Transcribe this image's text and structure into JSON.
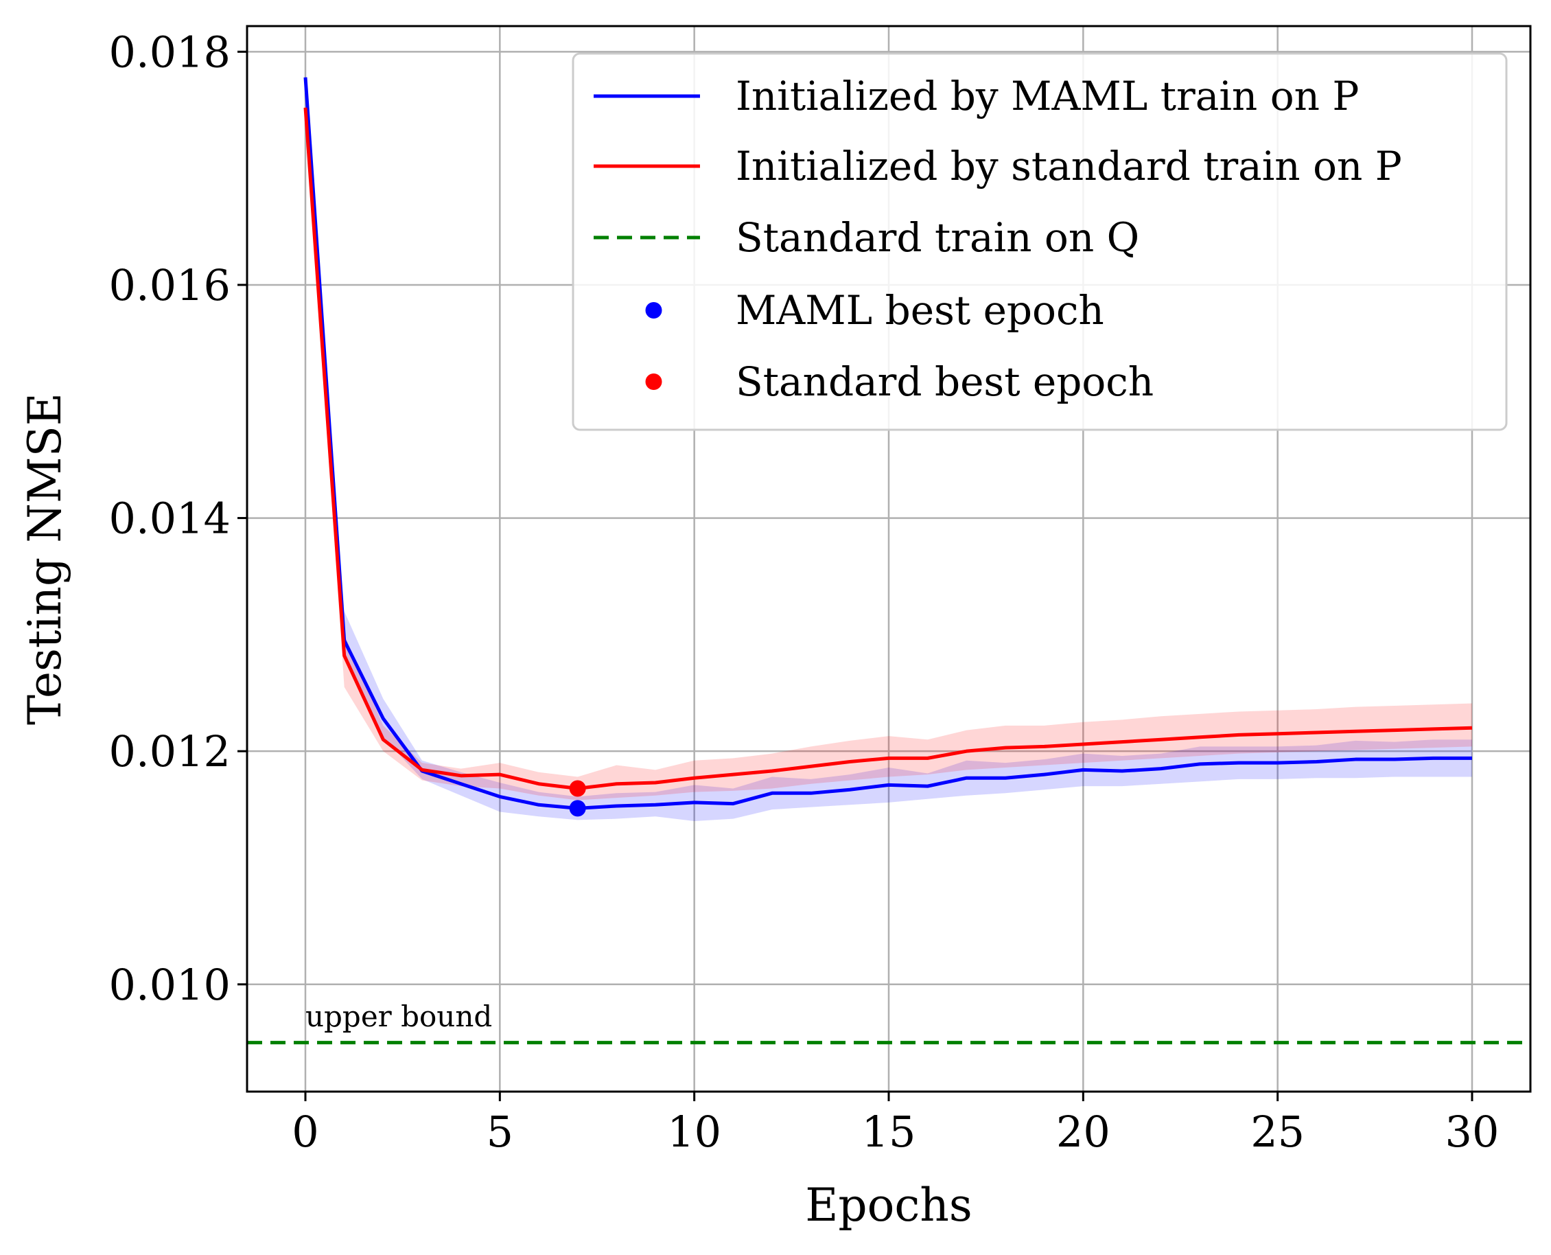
{
  "chart_data": {
    "type": "line",
    "xlabel": "Epochs",
    "ylabel": "Testing NMSE",
    "xlim": [
      -1.5,
      31.5
    ],
    "ylim": [
      0.00908,
      0.01822
    ],
    "xticks": [
      0,
      5,
      10,
      15,
      20,
      25,
      30
    ],
    "yticks": [
      0.01,
      0.012,
      0.014,
      0.016,
      0.018
    ],
    "xtick_labels": [
      "0",
      "5",
      "10",
      "15",
      "20",
      "25",
      "30"
    ],
    "ytick_labels": [
      "0.010",
      "0.012",
      "0.014",
      "0.016",
      "0.018"
    ],
    "grid": true,
    "legend_position": "top-right",
    "x": [
      0,
      1,
      2,
      3,
      4,
      5,
      6,
      7,
      8,
      9,
      10,
      11,
      12,
      13,
      14,
      15,
      16,
      17,
      18,
      19,
      20,
      21,
      22,
      23,
      24,
      25,
      26,
      27,
      28,
      29,
      30
    ],
    "series": [
      {
        "name": "Initialized by MAML train on P",
        "color": "#0000ff",
        "values": [
          0.01778,
          0.01295,
          0.01228,
          0.01183,
          0.01172,
          0.01161,
          0.01154,
          0.01151,
          0.01153,
          0.01154,
          0.01156,
          0.01155,
          0.01164,
          0.01164,
          0.01167,
          0.01171,
          0.0117,
          0.01177,
          0.01177,
          0.0118,
          0.01184,
          0.01183,
          0.01185,
          0.01189,
          0.0119,
          0.0119,
          0.01191,
          0.01193,
          0.01193,
          0.01194,
          0.01194
        ],
        "band": {
          "color": "#0000ff",
          "lower": [
            0.01776,
            0.0128,
            0.01212,
            0.01176,
            0.01162,
            0.01148,
            0.01144,
            0.01141,
            0.01142,
            0.01144,
            0.0114,
            0.01142,
            0.0115,
            0.01152,
            0.01154,
            0.01156,
            0.01159,
            0.01162,
            0.01164,
            0.01167,
            0.0117,
            0.0117,
            0.01172,
            0.01174,
            0.01176,
            0.01176,
            0.01177,
            0.01177,
            0.01178,
            0.01178,
            0.01178
          ],
          "upper": [
            0.0178,
            0.0132,
            0.01245,
            0.01192,
            0.01182,
            0.01173,
            0.01165,
            0.01161,
            0.01164,
            0.01165,
            0.01171,
            0.01168,
            0.01178,
            0.01176,
            0.0118,
            0.01186,
            0.01181,
            0.01192,
            0.0119,
            0.01193,
            0.01198,
            0.01196,
            0.01198,
            0.01204,
            0.01204,
            0.01204,
            0.01205,
            0.01209,
            0.01208,
            0.0121,
            0.0121
          ]
        }
      },
      {
        "name": "Initialized by standard train on P",
        "color": "#ff0000",
        "values": [
          0.01752,
          0.01282,
          0.0121,
          0.01184,
          0.01179,
          0.0118,
          0.01172,
          0.01168,
          0.01172,
          0.01173,
          0.01177,
          0.0118,
          0.01183,
          0.01187,
          0.01191,
          0.01194,
          0.01194,
          0.012,
          0.01203,
          0.01204,
          0.01206,
          0.01208,
          0.0121,
          0.01212,
          0.01214,
          0.01215,
          0.01216,
          0.01217,
          0.01218,
          0.01219,
          0.0122
        ],
        "band": {
          "color": "#ff0000",
          "lower": [
            0.0175,
            0.01255,
            0.012,
            0.01175,
            0.0117,
            0.01168,
            0.01162,
            0.01158,
            0.0116,
            0.01162,
            0.01165,
            0.01166,
            0.01168,
            0.01172,
            0.01175,
            0.01178,
            0.0118,
            0.01184,
            0.01186,
            0.01188,
            0.0119,
            0.01192,
            0.01194,
            0.01196,
            0.01198,
            0.01199,
            0.012,
            0.01201,
            0.01202,
            0.01203,
            0.01204
          ],
          "upper": [
            0.01754,
            0.013,
            0.01222,
            0.0119,
            0.01185,
            0.0119,
            0.01182,
            0.01178,
            0.01188,
            0.01184,
            0.01192,
            0.01194,
            0.01198,
            0.01204,
            0.01209,
            0.01213,
            0.0121,
            0.01218,
            0.01222,
            0.01222,
            0.01225,
            0.01227,
            0.0123,
            0.01232,
            0.01234,
            0.01235,
            0.01236,
            0.01238,
            0.01239,
            0.0124,
            0.01241
          ]
        }
      }
    ],
    "reference_line": {
      "name": "Standard train on Q",
      "color": "#008000",
      "y": 0.0095,
      "style": "dashed"
    },
    "best_points": [
      {
        "name": "MAML best epoch",
        "color": "#0000ff",
        "x": 7,
        "y": 0.01151
      },
      {
        "name": "Standard best epoch",
        "color": "#ff0000",
        "x": 7,
        "y": 0.01168
      }
    ],
    "annotations": [
      {
        "text": "upper bound",
        "x": 0,
        "y": 0.00964
      }
    ]
  }
}
